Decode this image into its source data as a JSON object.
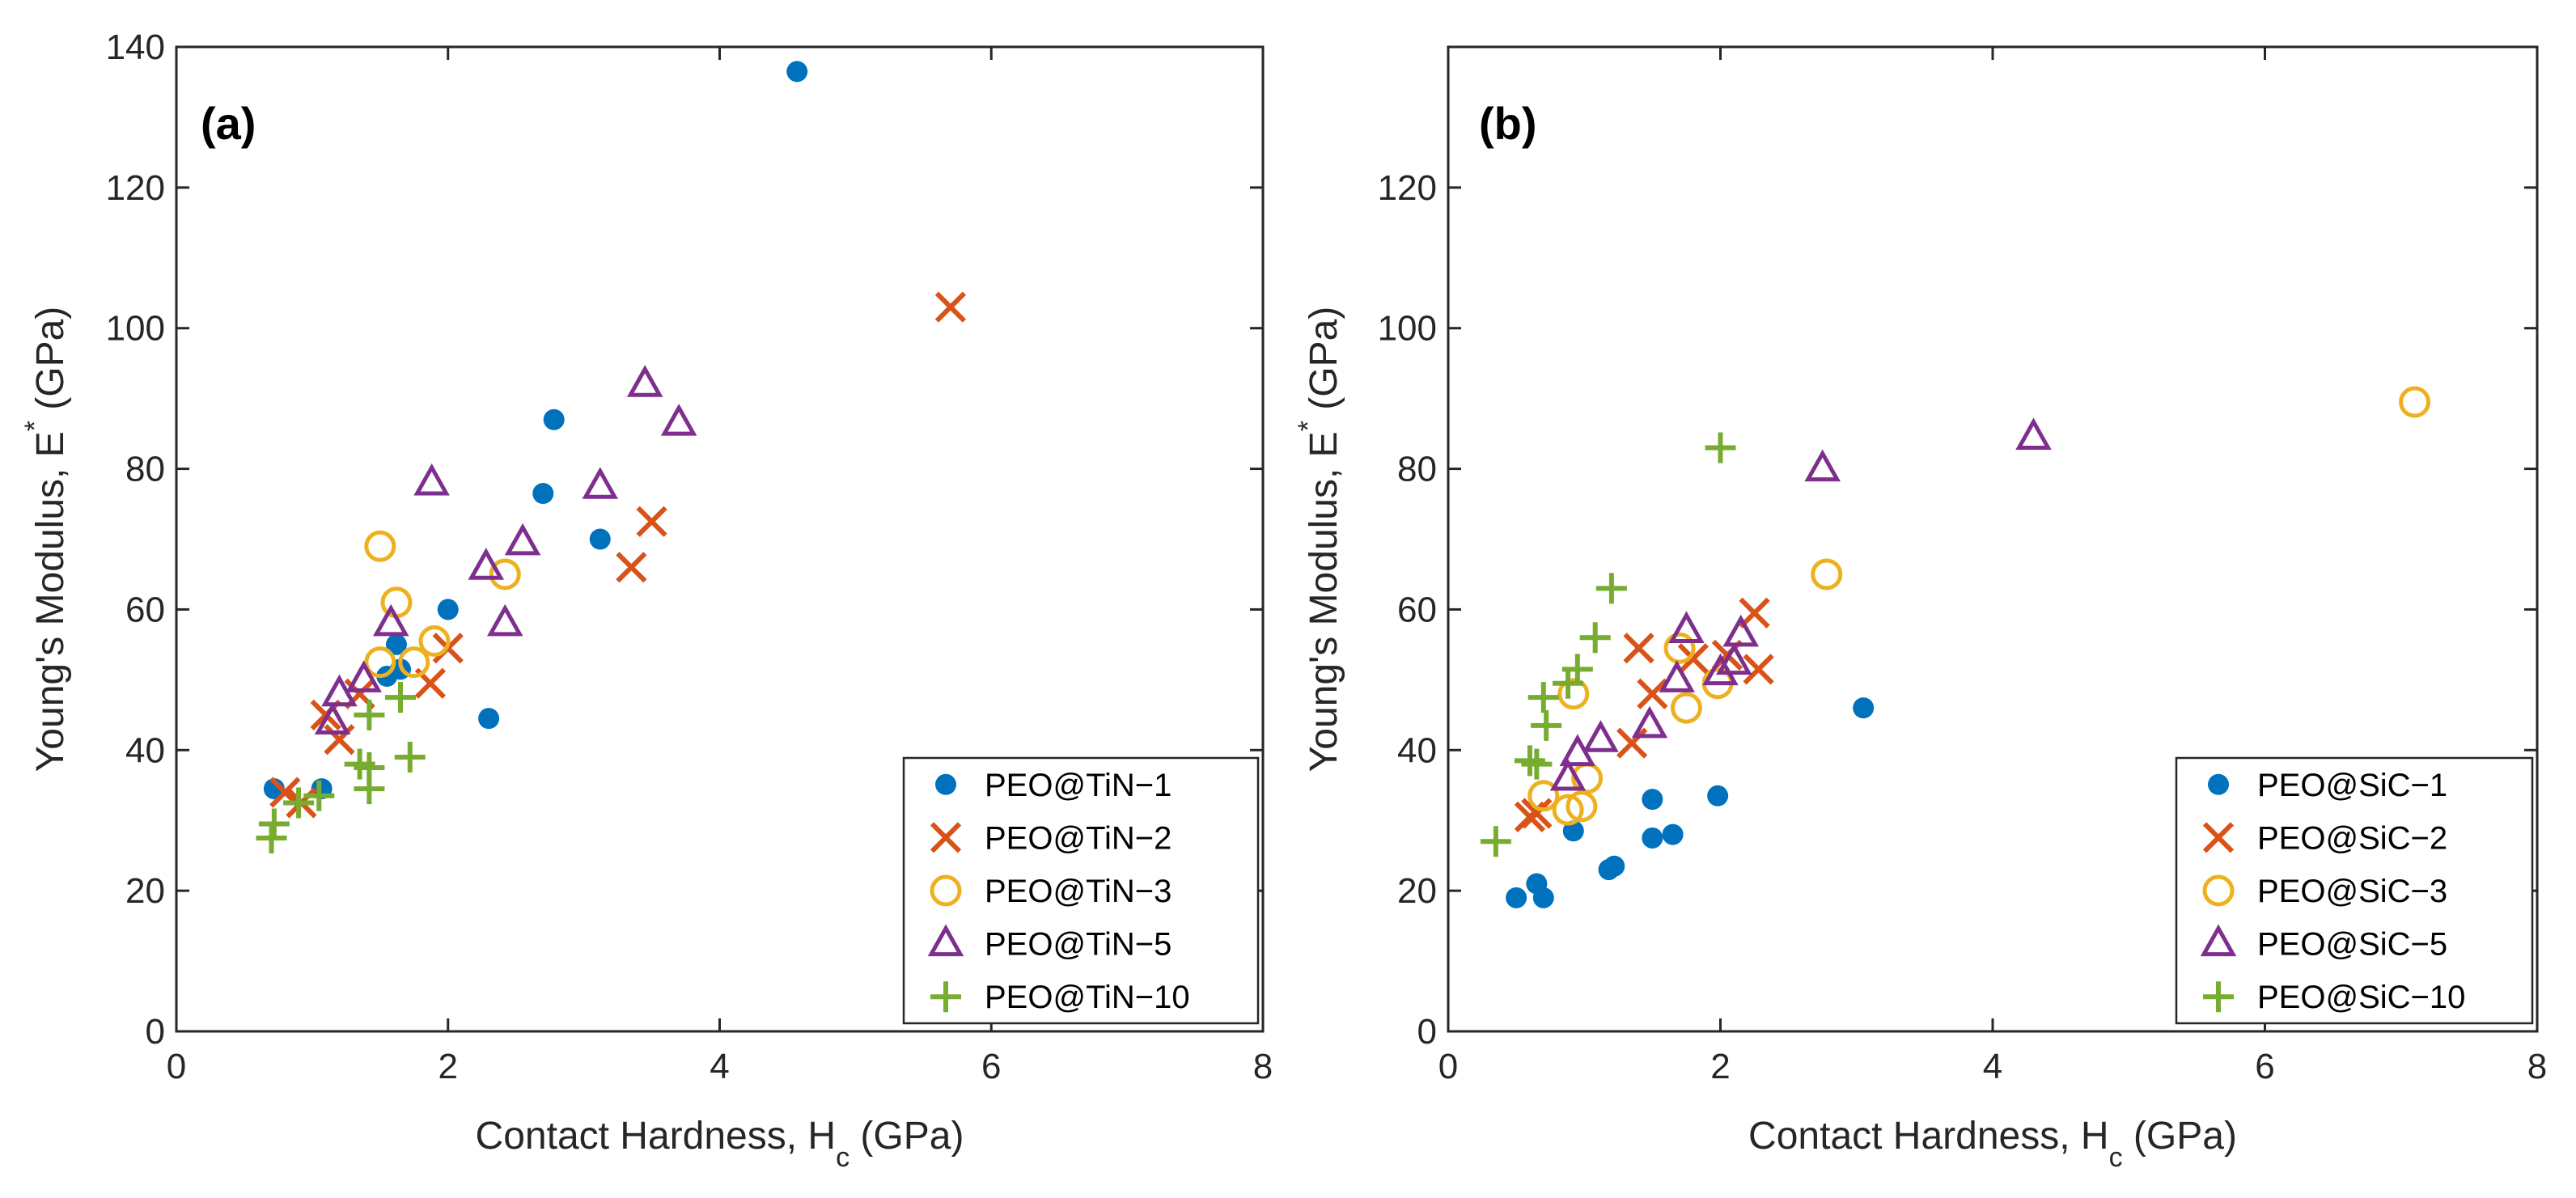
{
  "chart_data": [
    {
      "type": "scatter",
      "panel_label": "(a)",
      "xlabel": "Contact Hardness, H",
      "xlabel_sub": "c",
      "xlabel_unit": " (GPa)",
      "ylabel": "Young's Modulus, E",
      "ylabel_sup": "*",
      "ylabel_unit": " (GPa)",
      "xlim": [
        0,
        8
      ],
      "ylim": [
        0,
        140
      ],
      "xticks": [
        0,
        2,
        4,
        6,
        8
      ],
      "yticks": [
        0,
        20,
        40,
        60,
        80,
        100,
        120,
        140
      ],
      "legend_position": "bottom-right",
      "series": [
        {
          "name": "PEO@TiN−1",
          "marker": "dot",
          "color": "#0072BD",
          "points": [
            [
              0.72,
              34.5
            ],
            [
              1.07,
              34.5
            ],
            [
              1.55,
              50.5
            ],
            [
              1.62,
              55
            ],
            [
              1.65,
              51.5
            ],
            [
              2.0,
              60
            ],
            [
              2.3,
              44.5
            ],
            [
              2.7,
              76.5
            ],
            [
              2.78,
              87
            ],
            [
              3.12,
              70
            ],
            [
              4.57,
              136.5
            ]
          ]
        },
        {
          "name": "PEO@TiN−2",
          "marker": "x",
          "color": "#D95319",
          "points": [
            [
              0.8,
              34
            ],
            [
              0.92,
              32.5
            ],
            [
              1.1,
              45
            ],
            [
              1.2,
              41.5
            ],
            [
              1.35,
              48
            ],
            [
              1.87,
              49.5
            ],
            [
              2.0,
              54.5
            ],
            [
              3.35,
              66
            ],
            [
              3.5,
              72.5
            ],
            [
              5.7,
              103
            ]
          ]
        },
        {
          "name": "PEO@TiN−3",
          "marker": "circle",
          "color": "#EDB120",
          "points": [
            [
              1.5,
              52.5
            ],
            [
              1.5,
              69
            ],
            [
              1.62,
              61
            ],
            [
              1.75,
              52.5
            ],
            [
              1.9,
              55.5
            ],
            [
              2.42,
              65
            ]
          ]
        },
        {
          "name": "PEO@TiN−5",
          "marker": "triangle",
          "color": "#7E2F8E",
          "points": [
            [
              1.15,
              44
            ],
            [
              1.2,
              48
            ],
            [
              1.38,
              50
            ],
            [
              1.58,
              58
            ],
            [
              1.88,
              78
            ],
            [
              2.28,
              66
            ],
            [
              2.42,
              58
            ],
            [
              2.55,
              69.5
            ],
            [
              3.12,
              77.5
            ],
            [
              3.45,
              92
            ],
            [
              3.7,
              86.5
            ]
          ]
        },
        {
          "name": "PEO@TiN−10",
          "marker": "plus",
          "color": "#77AC30",
          "points": [
            [
              0.7,
              27.5
            ],
            [
              0.72,
              29.5
            ],
            [
              0.9,
              32.5
            ],
            [
              1.05,
              33.5
            ],
            [
              1.35,
              38
            ],
            [
              1.42,
              34.5
            ],
            [
              1.42,
              37.5
            ],
            [
              1.42,
              45
            ],
            [
              1.65,
              47.5
            ],
            [
              1.72,
              39
            ]
          ]
        }
      ]
    },
    {
      "type": "scatter",
      "panel_label": "(b)",
      "xlabel": "Contact Hardness, H",
      "xlabel_sub": "c",
      "xlabel_unit": " (GPa)",
      "ylabel": "Young's Modulus, E",
      "ylabel_sup": "*",
      "ylabel_unit": " (GPa)",
      "xlim": [
        0,
        8
      ],
      "ylim": [
        0,
        140
      ],
      "xticks": [
        0,
        2,
        4,
        6,
        8
      ],
      "yticks": [
        0,
        20,
        40,
        60,
        80,
        100,
        120
      ],
      "legend_position": "bottom-right",
      "series": [
        {
          "name": "PEO@SiC−1",
          "marker": "dot",
          "color": "#0072BD",
          "points": [
            [
              0.5,
              19
            ],
            [
              0.65,
              21
            ],
            [
              0.7,
              19
            ],
            [
              0.92,
              28.5
            ],
            [
              1.18,
              23
            ],
            [
              1.22,
              23.5
            ],
            [
              1.5,
              27.5
            ],
            [
              1.5,
              33
            ],
            [
              1.65,
              28
            ],
            [
              1.98,
              33.5
            ],
            [
              3.05,
              46
            ]
          ]
        },
        {
          "name": "PEO@SiC−2",
          "marker": "x",
          "color": "#D95319",
          "points": [
            [
              0.6,
              30.5
            ],
            [
              0.65,
              31
            ],
            [
              1.35,
              41
            ],
            [
              1.4,
              54.5
            ],
            [
              1.5,
              48
            ],
            [
              1.8,
              53
            ],
            [
              2.05,
              53.5
            ],
            [
              2.25,
              59.5
            ],
            [
              2.28,
              51.5
            ]
          ]
        },
        {
          "name": "PEO@SiC−3",
          "marker": "circle",
          "color": "#EDB120",
          "points": [
            [
              0.7,
              33.5
            ],
            [
              0.88,
              31.5
            ],
            [
              0.92,
              48
            ],
            [
              0.98,
              32
            ],
            [
              1.02,
              36
            ],
            [
              1.7,
              54.5
            ],
            [
              1.75,
              46
            ],
            [
              1.98,
              49.5
            ],
            [
              2.78,
              65
            ],
            [
              7.1,
              89.5
            ]
          ]
        },
        {
          "name": "PEO@SiC−5",
          "marker": "triangle",
          "color": "#7E2F8E",
          "points": [
            [
              0.88,
              36
            ],
            [
              0.95,
              39.5
            ],
            [
              1.12,
              41.5
            ],
            [
              1.48,
              43.5
            ],
            [
              1.68,
              50
            ],
            [
              1.75,
              57
            ],
            [
              2.0,
              51
            ],
            [
              2.1,
              52.5
            ],
            [
              2.15,
              56.5
            ],
            [
              2.75,
              80
            ],
            [
              4.3,
              84.5
            ]
          ]
        },
        {
          "name": "PEO@SiC−10",
          "marker": "plus",
          "color": "#77AC30",
          "points": [
            [
              0.35,
              27
            ],
            [
              0.6,
              38.5
            ],
            [
              0.65,
              38
            ],
            [
              0.7,
              47.5
            ],
            [
              0.72,
              43.5
            ],
            [
              0.88,
              49.5
            ],
            [
              0.95,
              51.5
            ],
            [
              1.08,
              56
            ],
            [
              1.2,
              63
            ],
            [
              2.0,
              83
            ]
          ]
        }
      ]
    }
  ]
}
